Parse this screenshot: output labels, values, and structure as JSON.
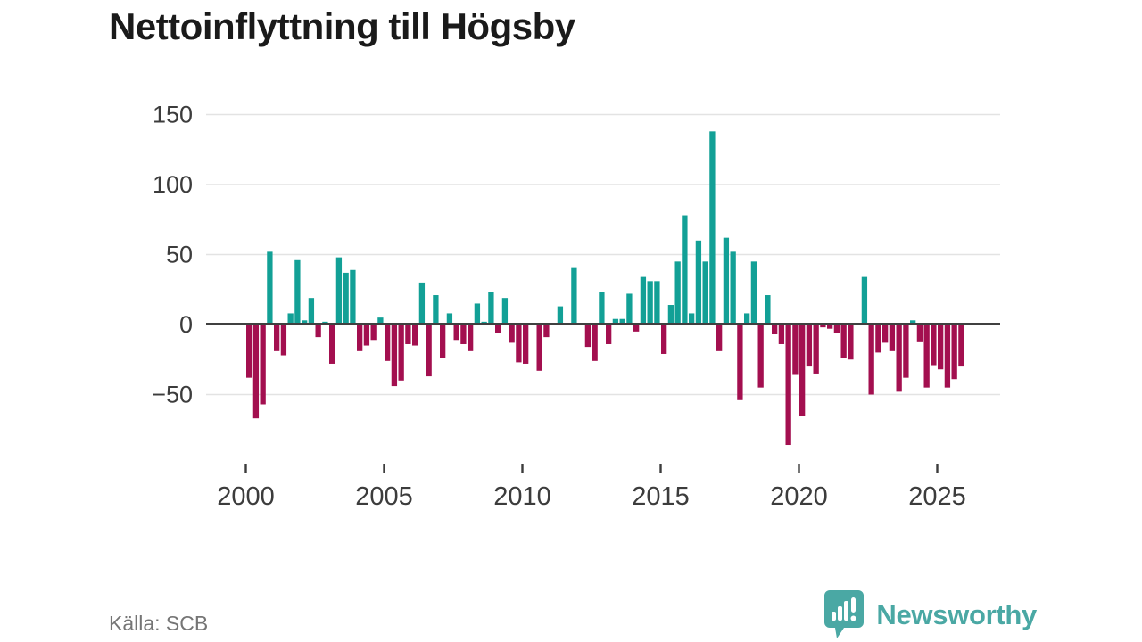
{
  "page": {
    "title": "Nettoinflyttning till Högsby",
    "source": "Källa: SCB"
  },
  "branding": {
    "name": "Newsworthy",
    "logo_icon": "bar-chart-speech-bubble",
    "color": "#4aa8a4"
  },
  "chart_data": {
    "type": "bar",
    "title": "Nettoinflyttning till Högsby",
    "xlabel": "",
    "ylabel": "",
    "frequency": "quarterly",
    "start_year": 2000,
    "end_year": 2025,
    "values": [
      -38,
      -67,
      -57,
      52,
      -19,
      -22,
      8,
      46,
      3,
      19,
      -9,
      2,
      -28,
      48,
      37,
      39,
      -19,
      -15,
      -11,
      5,
      -26,
      -44,
      -40,
      -14,
      -15,
      30,
      -37,
      21,
      -24,
      8,
      -11,
      -14,
      -19,
      15,
      2,
      23,
      -6,
      19,
      -13,
      -27,
      -28,
      0,
      -33,
      -9,
      0,
      13,
      0,
      41,
      0,
      -16,
      -26,
      23,
      -14,
      4,
      4,
      22,
      -5,
      34,
      31,
      31,
      -21,
      14,
      45,
      78,
      8,
      60,
      45,
      138,
      -19,
      62,
      52,
      -54,
      8,
      45,
      -45,
      21,
      -7,
      -14,
      -86,
      -36,
      -65,
      -30,
      -35,
      -2,
      -3,
      -6,
      -24,
      -25,
      0,
      34,
      -50,
      -20,
      -13,
      -19,
      -48,
      -38,
      3,
      -12,
      -45,
      -29,
      -32,
      -45,
      -39,
      -30
    ],
    "x_ticks": [
      2000,
      2005,
      2010,
      2015,
      2020,
      2025
    ],
    "y_ticks": [
      150,
      100,
      50,
      0,
      -50
    ],
    "ylim": [
      -95,
      160
    ],
    "grid": true,
    "legend": "none",
    "colors": {
      "positive": "#12a096",
      "negative": "#a30f4f",
      "zero_line": "#404040",
      "grid_line": "#e3e3e3",
      "tick_label": "#3c3c3c"
    }
  }
}
